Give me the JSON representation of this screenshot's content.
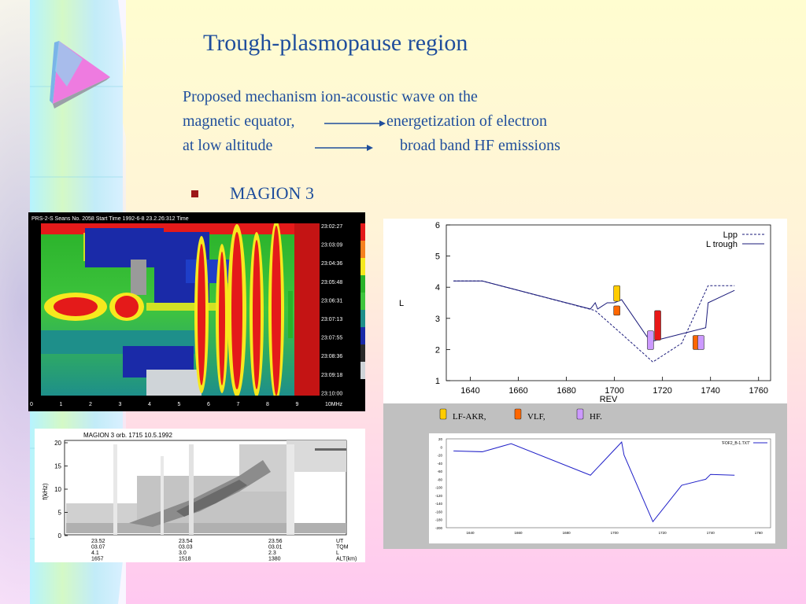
{
  "slide": {
    "title": "Trough-plasmopause region",
    "lines": [
      "Proposed mechanism ion-acoustic wave on the",
      "magnetic equator,",
      "energetization of electron",
      "at low altitude",
      "broad band HF emissions"
    ],
    "bullet": "MAGION 3"
  },
  "spectrogram": {
    "header": "PRS-2-S     Seans No. 2058     Start Time 1992-6-8 23.2.26:312       Time",
    "times": [
      "23:02:27",
      "23:03:09",
      "23:04:36",
      "23:05:48",
      "23:06:31",
      "23:07:13",
      "23:07:55",
      "23:08:36",
      "23:09:18",
      "23:10:00"
    ],
    "freq_ticks": [
      "0",
      "1",
      "2",
      "3",
      "4",
      "5",
      "6",
      "7",
      "8",
      "9",
      "10MHz"
    ]
  },
  "scatter": {
    "header": "MAGION 3     orb. 1715     10.5.1992",
    "ylabel": "f(kHz)",
    "yticks": [
      "20",
      "15",
      "10",
      "5",
      "0"
    ],
    "footer_cols": [
      [
        "23.52",
        "03.07",
        "4.1",
        "1657"
      ],
      [
        "23.54",
        "03.03",
        "3.0",
        "1518"
      ],
      [
        "23.56",
        "03.01",
        "2.3",
        "1380"
      ],
      [
        "UT",
        "TQM",
        "L",
        "ALT(km)"
      ]
    ]
  },
  "chart_data": [
    {
      "type": "line",
      "xlabel": "REV",
      "ylabel": "L",
      "xlim": [
        1630,
        1765
      ],
      "ylim": [
        1,
        6
      ],
      "xticks": [
        1640,
        1660,
        1680,
        1700,
        1720,
        1740,
        1760
      ],
      "yticks": [
        1,
        2,
        3,
        4,
        5,
        6
      ],
      "legend_position": "top-right",
      "series": [
        {
          "name": "Lpp",
          "style": "dashed",
          "x": [
            1633,
            1645,
            1692,
            1703,
            1716,
            1728,
            1739,
            1750
          ],
          "y": [
            4.2,
            4.2,
            3.25,
            2.5,
            1.6,
            2.2,
            4.05,
            4.05
          ]
        },
        {
          "name": "L trough",
          "style": "solid",
          "x": [
            1633,
            1645,
            1690,
            1692,
            1693,
            1697,
            1700,
            1703,
            1715,
            1738,
            1739,
            1750
          ],
          "y": [
            4.2,
            4.2,
            3.3,
            3.5,
            3.3,
            3.5,
            3.5,
            3.6,
            2.25,
            2.7,
            3.5,
            3.9
          ]
        }
      ],
      "markers": [
        {
          "x": 1701,
          "y0": 3.55,
          "y1": 4.05,
          "color": "#ffcc00"
        },
        {
          "x": 1701,
          "y0": 3.1,
          "y1": 3.4,
          "color": "#ff6600"
        },
        {
          "x": 1715,
          "y0": 2.0,
          "y1": 2.6,
          "color": "#cc99ff"
        },
        {
          "x": 1718,
          "y0": 2.3,
          "y1": 3.25,
          "color": "#e81818"
        },
        {
          "x": 1734,
          "y0": 2.0,
          "y1": 2.45,
          "color": "#ff6600"
        },
        {
          "x": 1736,
          "y0": 2.0,
          "y1": 2.45,
          "color": "#cc99ff"
        }
      ]
    },
    {
      "type": "line",
      "xlim": [
        1630,
        1765
      ],
      "ylim": [
        -200,
        20
      ],
      "xticks": [
        1640,
        1660,
        1680,
        1700,
        1720,
        1740,
        1760
      ],
      "yticks": [
        20,
        0,
        -20,
        -40,
        -60,
        -80,
        -100,
        -120,
        -140,
        -160,
        -180,
        -200
      ],
      "legend_position": "top-right",
      "series": [
        {
          "name": "'FOF2_B-1.TXT'",
          "x": [
            1633,
            1645,
            1657,
            1690,
            1703,
            1704,
            1716,
            1728,
            1738,
            1740,
            1750
          ],
          "y": [
            -10,
            -12,
            8,
            -70,
            12,
            -20,
            -185,
            -95,
            -80,
            -68,
            -70
          ]
        }
      ]
    }
  ],
  "legend_keys": [
    {
      "label": "LF-AKR,",
      "color": "#ffcc00"
    },
    {
      "label": "VLF,",
      "color": "#ff6600"
    },
    {
      "label": "HF.",
      "color": "#cc99ff"
    }
  ]
}
